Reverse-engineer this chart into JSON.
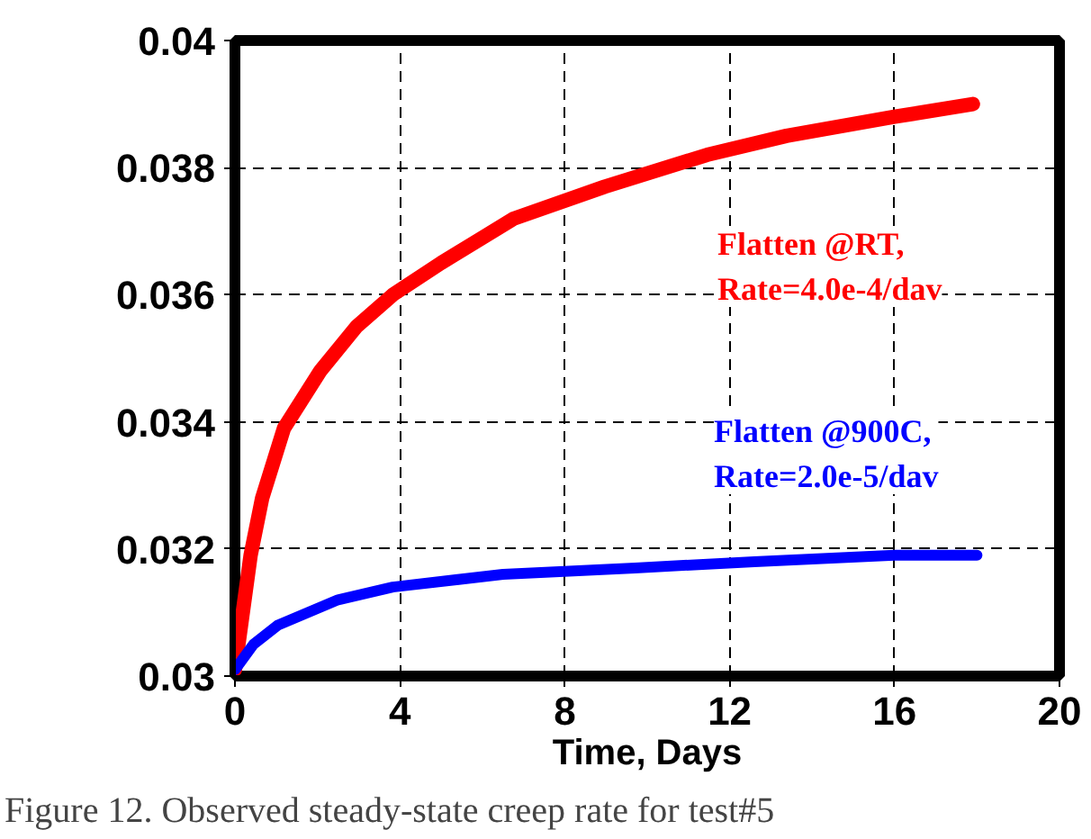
{
  "chart_data": {
    "type": "line",
    "xlabel": "Time, Days",
    "annotations": [
      "Figure 12. Observed steady-state creep rate for test#5"
    ],
    "series": [
      {
        "name": "Flatten @RT,\nRate=4.0e-4/dav",
        "color": "#ff0000",
        "x": [
          0,
          0.38,
          0.66,
          1.19,
          2.07,
          2.95,
          3.83,
          5.0,
          6.77,
          8.97,
          11.45,
          13.38,
          16.0,
          17.9
        ],
        "values": [
          0.0301,
          0.0319,
          0.0328,
          0.0339,
          0.0348,
          0.0355,
          0.036,
          0.0365,
          0.0372,
          0.0377,
          0.0382,
          0.0385,
          0.0388,
          0.039
        ]
      },
      {
        "name": "Flatten @900C,\nRate=2.0e-5/dav",
        "color": "#0000ff",
        "x": [
          0,
          0.45,
          1.04,
          2.5,
          3.83,
          6.5,
          9.7,
          12.6,
          16.0,
          18.0
        ],
        "values": [
          0.0301,
          0.0305,
          0.0308,
          0.0312,
          0.0314,
          0.0316,
          0.0317,
          0.0318,
          0.0319,
          0.0319
        ]
      }
    ],
    "xlim": [
      0,
      20
    ],
    "xticks": [
      0,
      4,
      8,
      12,
      16,
      20
    ],
    "ylim": [
      0.03,
      0.04
    ],
    "yticks": [
      0.03,
      0.032,
      0.034,
      0.036,
      0.038,
      0.04
    ],
    "grid": true,
    "legend": false,
    "marker": "none",
    "line_style": "solid"
  }
}
